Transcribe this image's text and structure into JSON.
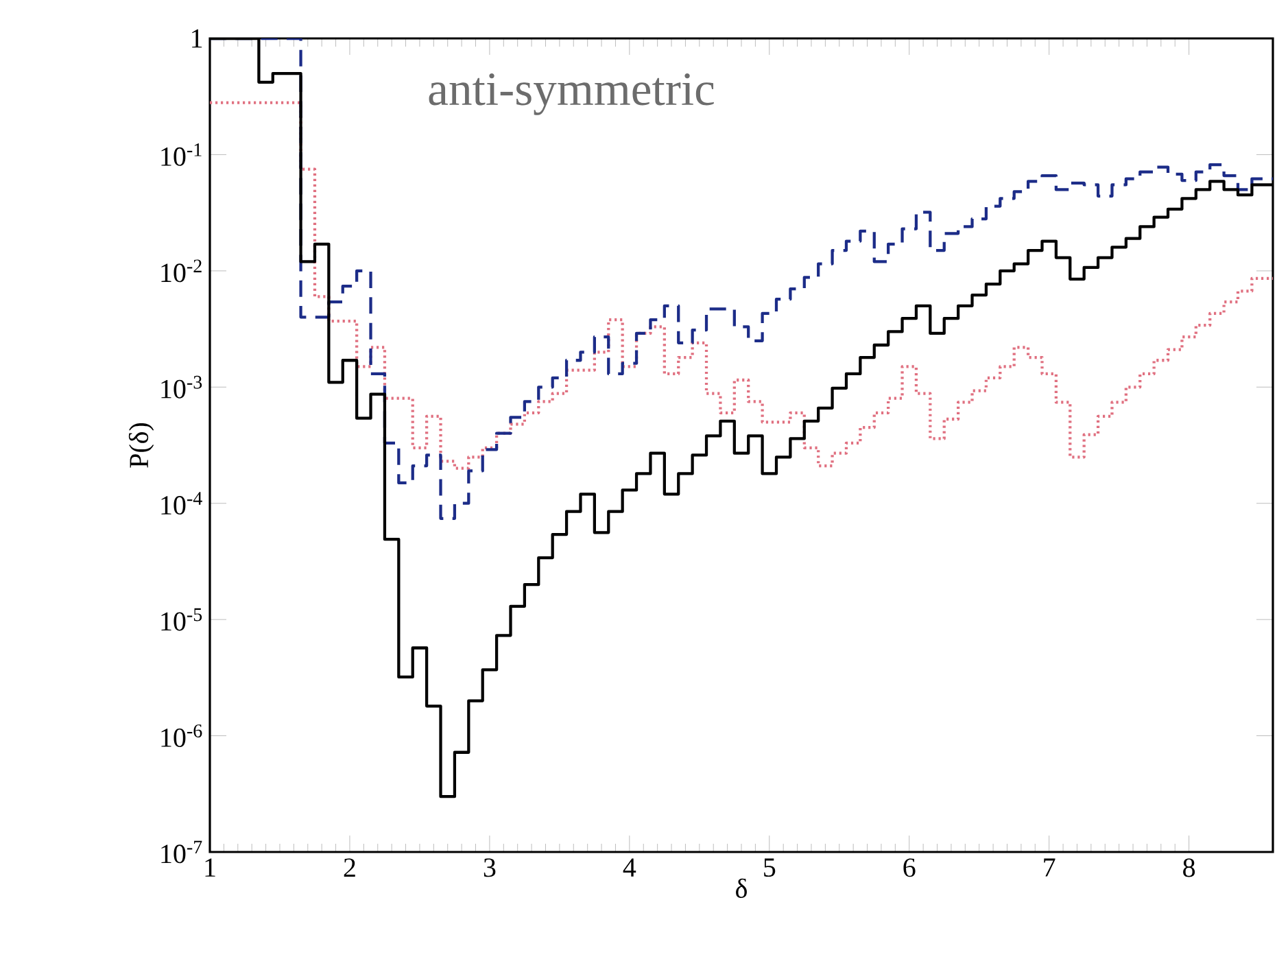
{
  "chart_data": {
    "type": "step",
    "xlabel": "δ",
    "ylabel": "P(δ)",
    "log": "y",
    "annotations": [
      "anti-symmetric"
    ],
    "xlim": [
      1,
      8.6
    ],
    "ylim": [
      1e-07,
      1
    ],
    "xticks": [
      1,
      2,
      3,
      4,
      5,
      6,
      7,
      8
    ],
    "yticks": [
      {
        "value": 1e-07,
        "label": "10$^{-7}$"
      },
      {
        "value": 1e-06,
        "label": "10$^{-6}$"
      },
      {
        "value": 1e-05,
        "label": "10$^{-5}$"
      },
      {
        "value": 0.0001,
        "label": "10$^{-4}$"
      },
      {
        "value": 0.001,
        "label": "10$^{-3}$"
      },
      {
        "value": 0.01,
        "label": "10$^{-2}$"
      },
      {
        "value": 0.1,
        "label": "10$^{-1}$"
      },
      1
    ],
    "series": [
      {
        "color": "#e07080",
        "line_style": "dotted",
        "x": [
          1.0,
          1.65,
          1.75,
          1.85,
          1.95,
          2.05,
          2.15,
          2.25,
          2.35,
          2.45,
          2.55,
          2.65,
          2.75,
          2.85,
          2.95,
          3.05,
          3.15,
          3.25,
          3.35,
          3.45,
          3.55,
          3.65,
          3.75,
          3.85,
          3.95,
          4.05,
          4.15,
          4.25,
          4.35,
          4.45,
          4.55,
          4.65,
          4.75,
          4.85,
          4.95,
          5.05,
          5.15,
          5.25,
          5.35,
          5.45,
          5.55,
          5.65,
          5.75,
          5.85,
          5.95,
          6.05,
          6.15,
          6.25,
          6.35,
          6.45,
          6.55,
          6.65,
          6.75,
          6.85,
          6.95,
          7.05,
          7.15,
          7.25,
          7.35,
          7.45,
          7.55,
          7.65,
          7.75,
          7.85,
          7.95,
          8.05,
          8.15,
          8.25,
          8.35,
          8.45,
          8.6
        ],
        "values": [
          0.28,
          0.075,
          0.006,
          0.0037,
          0.0037,
          0.0015,
          0.0022,
          0.0008,
          0.0008,
          0.0003,
          0.00056,
          0.00023,
          0.0002,
          0.00025,
          0.0003,
          0.0004,
          0.00048,
          0.0006,
          0.00075,
          0.00088,
          0.0014,
          0.0014,
          0.002,
          0.0038,
          0.0015,
          0.0029,
          0.0033,
          0.0013,
          0.0018,
          0.0024,
          0.00088,
          0.0006,
          0.00115,
          0.00075,
          0.0005,
          0.0005,
          0.0006,
          0.0003,
          0.00021,
          0.00027,
          0.00033,
          0.00045,
          0.0006,
          0.0008,
          0.0015,
          0.00088,
          0.00036,
          0.00053,
          0.00074,
          0.00093,
          0.0012,
          0.0015,
          0.0022,
          0.0018,
          0.0013,
          0.00074,
          0.00025,
          0.00039,
          0.00056,
          0.00074,
          0.001,
          0.0013,
          0.0017,
          0.0021,
          0.0027,
          0.0034,
          0.0043,
          0.0054,
          0.0067,
          0.0086,
          0.0086
        ]
      },
      {
        "color": "#1c2c88",
        "line_style": "dashed",
        "x": [
          1.0,
          1.65,
          1.75,
          1.85,
          1.95,
          2.05,
          2.15,
          2.25,
          2.35,
          2.45,
          2.55,
          2.65,
          2.75,
          2.85,
          2.95,
          3.05,
          3.15,
          3.25,
          3.35,
          3.45,
          3.55,
          3.65,
          3.75,
          3.85,
          3.95,
          4.05,
          4.15,
          4.25,
          4.35,
          4.45,
          4.55,
          4.65,
          4.75,
          4.85,
          4.95,
          5.05,
          5.15,
          5.25,
          5.35,
          5.45,
          5.55,
          5.65,
          5.75,
          5.85,
          5.95,
          6.05,
          6.15,
          6.25,
          6.35,
          6.45,
          6.55,
          6.65,
          6.75,
          6.85,
          6.95,
          7.05,
          7.15,
          7.25,
          7.35,
          7.45,
          7.55,
          7.65,
          7.75,
          7.85,
          7.95,
          8.05,
          8.15,
          8.25,
          8.35,
          8.45,
          8.6
        ],
        "values": [
          1,
          0.004,
          0.004,
          0.0054,
          0.0074,
          0.01,
          0.0013,
          0.00033,
          0.00015,
          0.00021,
          0.00026,
          7.4e-05,
          0.0001,
          0.00019,
          0.00029,
          0.0004,
          0.00055,
          0.00075,
          0.001,
          0.0012,
          0.0017,
          0.002,
          0.0027,
          0.0013,
          0.0016,
          0.0029,
          0.0038,
          0.005,
          0.0024,
          0.0031,
          0.0047,
          0.0047,
          0.0033,
          0.0025,
          0.0043,
          0.0057,
          0.007,
          0.0088,
          0.0115,
          0.015,
          0.018,
          0.022,
          0.012,
          0.017,
          0.023,
          0.032,
          0.015,
          0.021,
          0.024,
          0.028,
          0.036,
          0.042,
          0.048,
          0.059,
          0.066,
          0.05,
          0.057,
          0.055,
          0.044,
          0.055,
          0.062,
          0.071,
          0.078,
          0.068,
          0.06,
          0.071,
          0.082,
          0.066,
          0.05,
          0.062,
          0.062
        ]
      },
      {
        "color": "#000000",
        "line_style": "solid",
        "x": [
          1.0,
          1.35,
          1.45,
          1.65,
          1.75,
          1.85,
          1.95,
          2.05,
          2.15,
          2.25,
          2.35,
          2.45,
          2.55,
          2.65,
          2.75,
          2.85,
          2.95,
          3.05,
          3.15,
          3.25,
          3.35,
          3.45,
          3.55,
          3.65,
          3.75,
          3.85,
          3.95,
          4.05,
          4.15,
          4.25,
          4.35,
          4.45,
          4.55,
          4.65,
          4.75,
          4.85,
          4.95,
          5.05,
          5.15,
          5.25,
          5.35,
          5.45,
          5.55,
          5.65,
          5.75,
          5.85,
          5.95,
          6.05,
          6.15,
          6.25,
          6.35,
          6.45,
          6.55,
          6.65,
          6.75,
          6.85,
          6.95,
          7.05,
          7.15,
          7.25,
          7.35,
          7.45,
          7.55,
          7.65,
          7.75,
          7.85,
          7.95,
          8.05,
          8.15,
          8.25,
          8.35,
          8.45,
          8.6
        ],
        "values": [
          1,
          0.42,
          0.5,
          0.012,
          0.017,
          0.0011,
          0.0017,
          0.00054,
          0.00087,
          4.9e-05,
          3.2e-06,
          5.7e-06,
          1.8e-06,
          3e-07,
          7.2e-07,
          2e-06,
          3.7e-06,
          7.3e-06,
          1.3e-05,
          2e-05,
          3.4e-05,
          5.4e-05,
          8.5e-05,
          0.00012,
          5.6e-05,
          8.5e-05,
          0.00013,
          0.00018,
          0.00027,
          0.00012,
          0.00018,
          0.00026,
          0.00038,
          0.00051,
          0.00027,
          0.00038,
          0.00018,
          0.00025,
          0.00036,
          0.00051,
          0.00066,
          0.00098,
          0.0013,
          0.0018,
          0.0023,
          0.003,
          0.0039,
          0.005,
          0.0029,
          0.0039,
          0.005,
          0.0062,
          0.0077,
          0.01,
          0.0115,
          0.015,
          0.018,
          0.013,
          0.0085,
          0.0107,
          0.013,
          0.016,
          0.019,
          0.024,
          0.029,
          0.034,
          0.042,
          0.05,
          0.059,
          0.05,
          0.045,
          0.055,
          0.055
        ]
      }
    ]
  }
}
